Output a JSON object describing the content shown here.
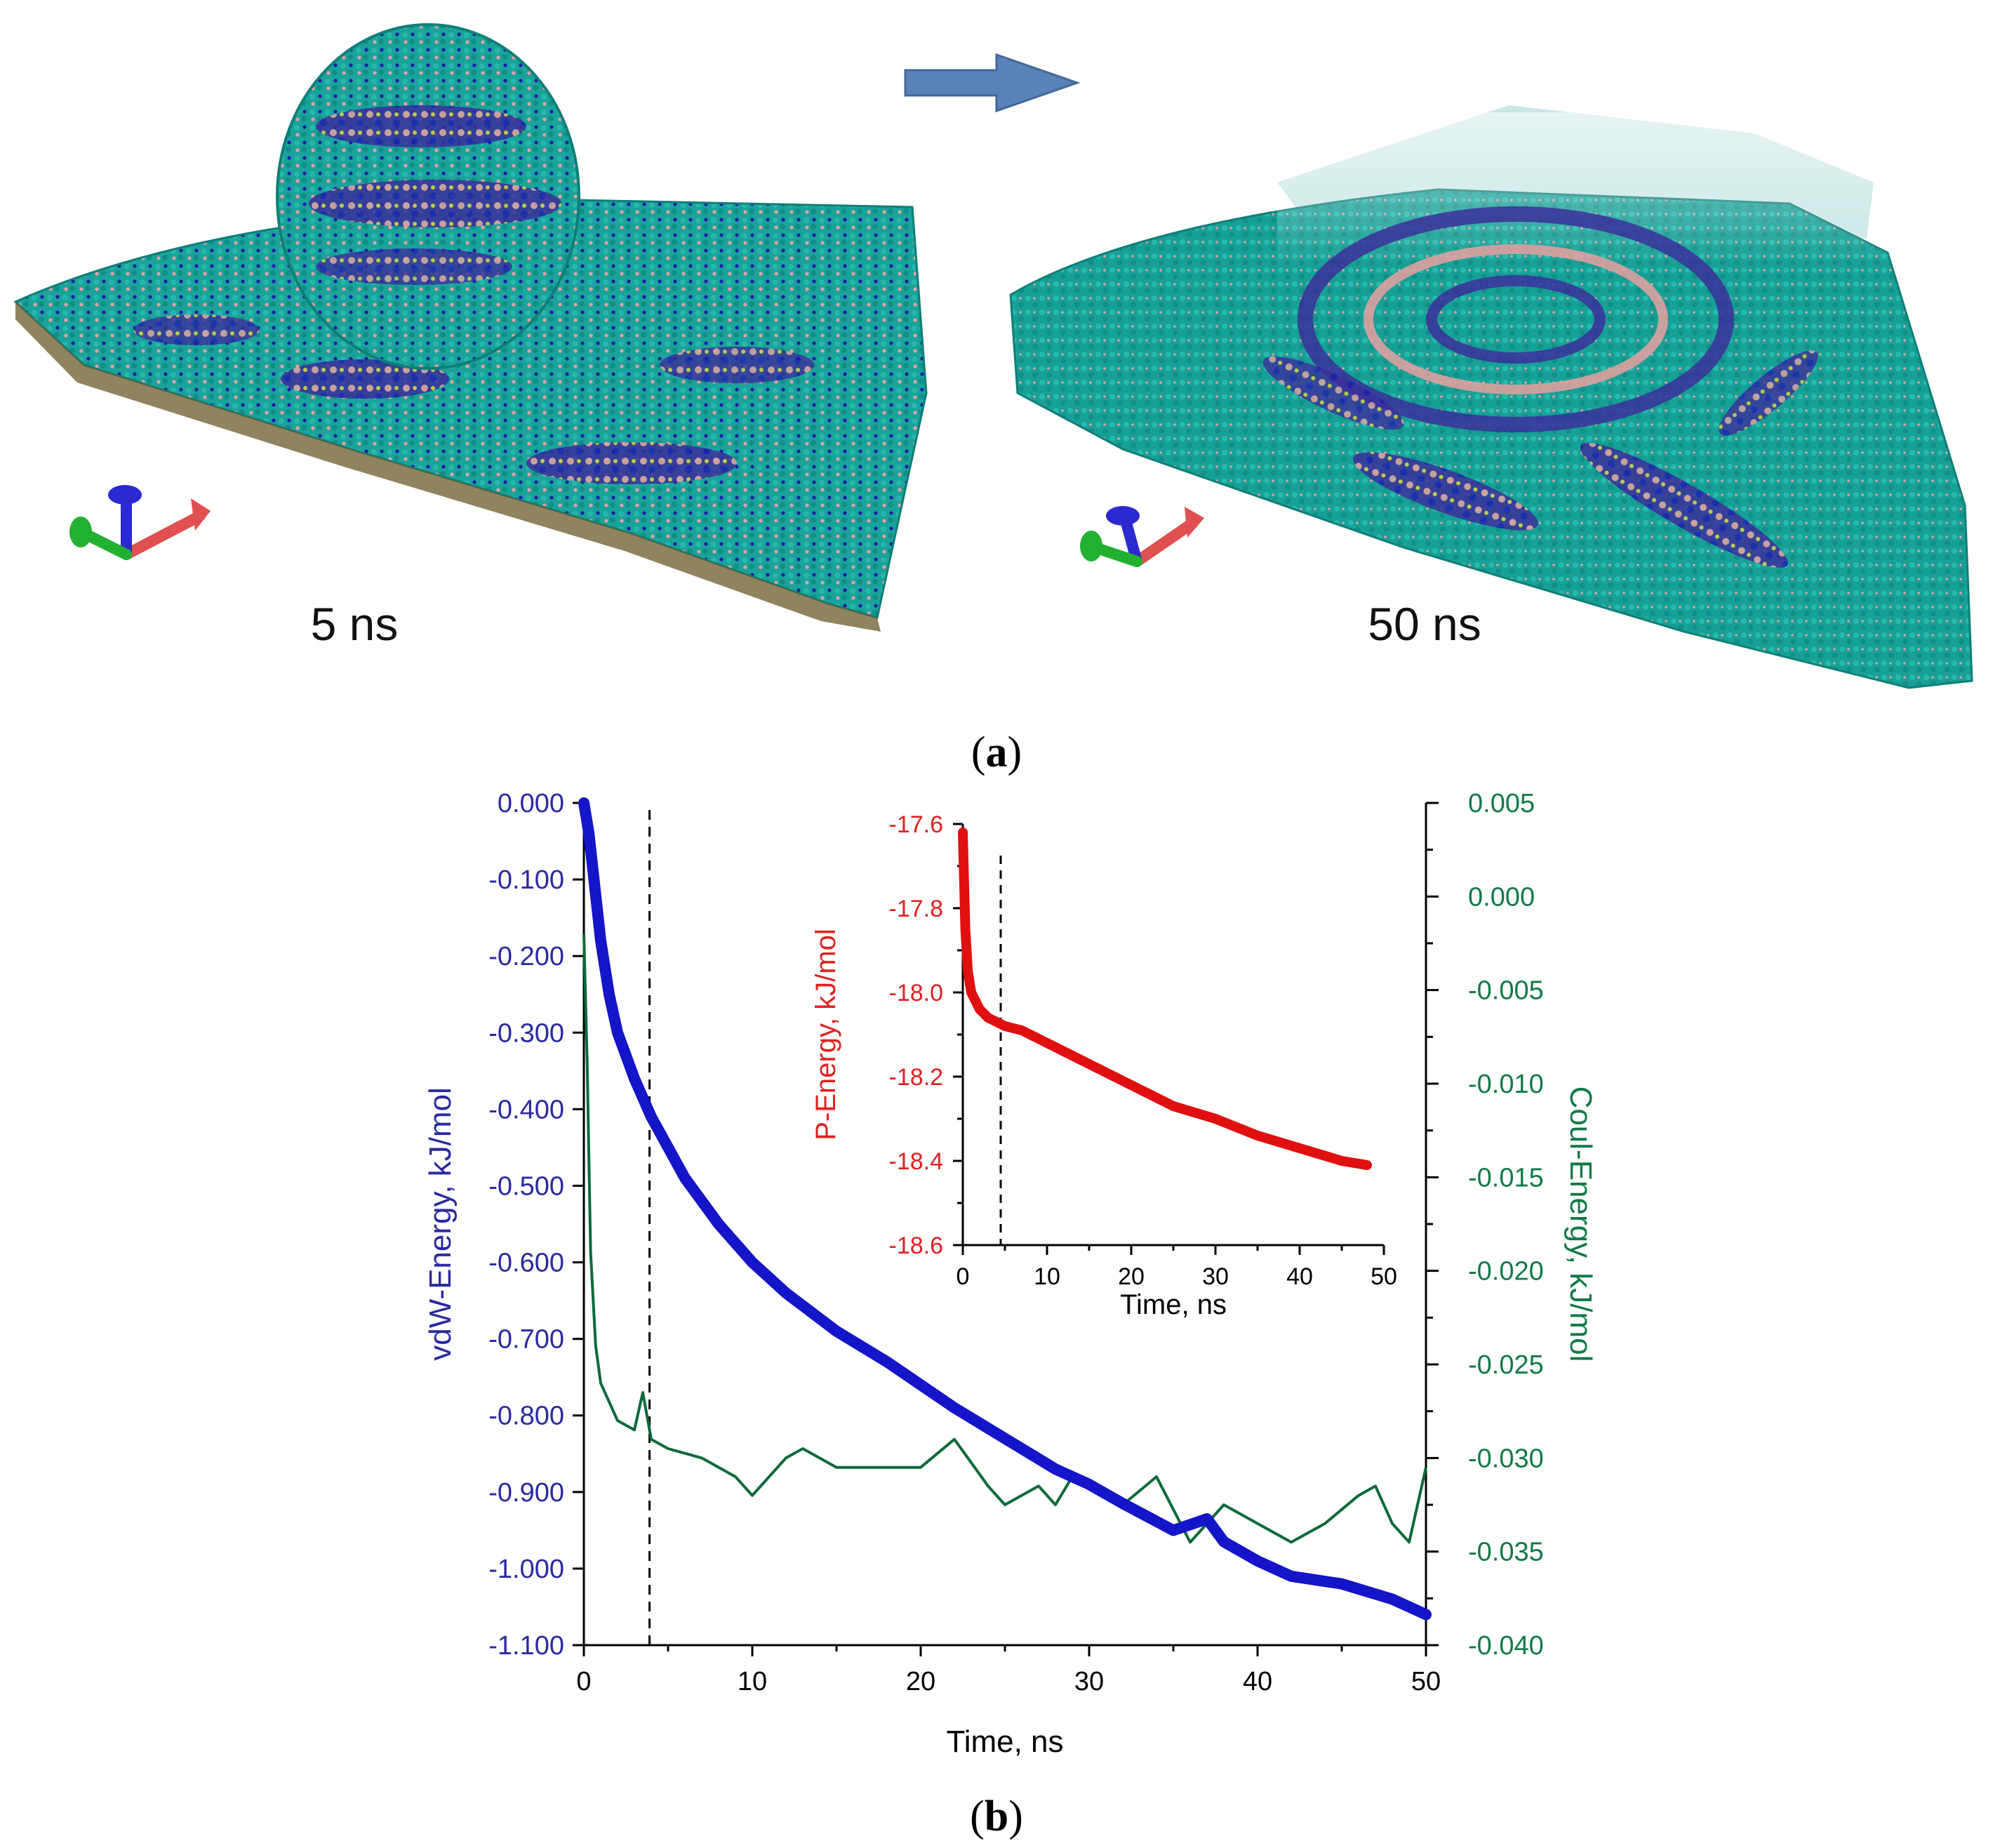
{
  "panel_a": {
    "label_open": "(",
    "label_letter": "a",
    "label_close": ")",
    "snapshot_left_label": "5 ns",
    "snapshot_right_label": "50 ns",
    "arrow_color": "#5b82b7"
  },
  "panel_b": {
    "label_open": "(",
    "label_letter": "b",
    "label_close": ")"
  },
  "colors": {
    "vdw": "#1414c8",
    "coul": "#0d6a3a",
    "pen": "#e01010",
    "vdw_text": "#2a2aa0",
    "coul_text": "#117a47",
    "pen_text": "#e02020",
    "particles_teal": "#1aa39a",
    "particles_blue": "#1c1cb0",
    "particles_pink": "#e7a0a0",
    "particles_yellow": "#d9d23a"
  },
  "chart_data": [
    {
      "id": "main",
      "type": "line",
      "xlabel": "Time, ns",
      "xlim": [
        0,
        50
      ],
      "xticks": [
        0,
        10,
        20,
        30,
        40,
        50
      ],
      "vline_x": 3.9,
      "series": [
        {
          "name": "vdW-Energy",
          "axis": "left",
          "ylabel": "vdW-Energy, kJ/mol",
          "ylim": [
            -1.1,
            0.0
          ],
          "yticks": [
            "0.000",
            "-0.100",
            "-0.200",
            "-0.300",
            "-0.400",
            "-0.500",
            "-0.600",
            "-0.700",
            "-0.800",
            "-0.900",
            "-1.000",
            "-1.100"
          ],
          "x": [
            0,
            0.3,
            0.6,
            1,
            1.5,
            2,
            3,
            4,
            5,
            6,
            8,
            10,
            12,
            15,
            18,
            20,
            22,
            25,
            28,
            30,
            32,
            35,
            37,
            38,
            40,
            42,
            45,
            48,
            50
          ],
          "y": [
            0.0,
            -0.04,
            -0.1,
            -0.18,
            -0.25,
            -0.3,
            -0.36,
            -0.41,
            -0.45,
            -0.49,
            -0.55,
            -0.6,
            -0.64,
            -0.69,
            -0.73,
            -0.76,
            -0.79,
            -0.83,
            -0.87,
            -0.89,
            -0.915,
            -0.95,
            -0.935,
            -0.965,
            -0.99,
            -1.01,
            -1.02,
            -1.04,
            -1.06
          ]
        },
        {
          "name": "Coul-Energy",
          "axis": "right",
          "ylabel": "Coul-Energy, kJ/mol",
          "ylim": [
            -0.04,
            0.005
          ],
          "yticks": [
            "0.005",
            "0.000",
            "-0.005",
            "-0.010",
            "-0.015",
            "-0.020",
            "-0.025",
            "-0.030",
            "-0.035",
            "-0.040"
          ],
          "x": [
            0,
            0.2,
            0.4,
            0.7,
            1,
            1.5,
            2,
            3,
            3.5,
            4,
            5,
            7,
            9,
            10,
            12,
            13,
            15,
            18,
            20,
            22,
            24,
            25,
            27,
            28,
            29,
            30,
            32,
            34,
            36,
            38,
            40,
            42,
            44,
            46,
            47,
            48,
            49,
            50
          ],
          "y": [
            -0.002,
            -0.009,
            -0.019,
            -0.024,
            -0.026,
            -0.027,
            -0.028,
            -0.0285,
            -0.0265,
            -0.029,
            -0.0295,
            -0.03,
            -0.031,
            -0.032,
            -0.03,
            -0.0295,
            -0.0305,
            -0.0305,
            -0.0305,
            -0.029,
            -0.0315,
            -0.0325,
            -0.0315,
            -0.0325,
            -0.031,
            -0.0315,
            -0.0325,
            -0.031,
            -0.0345,
            -0.0325,
            -0.0335,
            -0.0345,
            -0.0335,
            -0.032,
            -0.0315,
            -0.0335,
            -0.0345,
            -0.0305
          ]
        }
      ]
    },
    {
      "id": "inset",
      "type": "line",
      "xlabel": "Time, ns",
      "ylabel": "P-Energy, kJ/mol",
      "xlim": [
        0,
        50
      ],
      "ylim": [
        -18.6,
        -17.6
      ],
      "xticks": [
        0,
        10,
        20,
        30,
        40,
        50
      ],
      "yticks": [
        "-17.6",
        "-17.8",
        "-18.0",
        "-18.2",
        "-18.4",
        "-18.6"
      ],
      "vline_x": 4.5,
      "series": [
        {
          "name": "P-Energy",
          "x": [
            0,
            0.3,
            0.6,
            1,
            2,
            3,
            4,
            5,
            7,
            10,
            15,
            20,
            25,
            30,
            35,
            40,
            45,
            48
          ],
          "y": [
            -17.62,
            -17.85,
            -17.95,
            -18.0,
            -18.04,
            -18.06,
            -18.07,
            -18.08,
            -18.09,
            -18.12,
            -18.17,
            -18.22,
            -18.27,
            -18.3,
            -18.34,
            -18.37,
            -18.4,
            -18.41
          ]
        }
      ]
    }
  ]
}
